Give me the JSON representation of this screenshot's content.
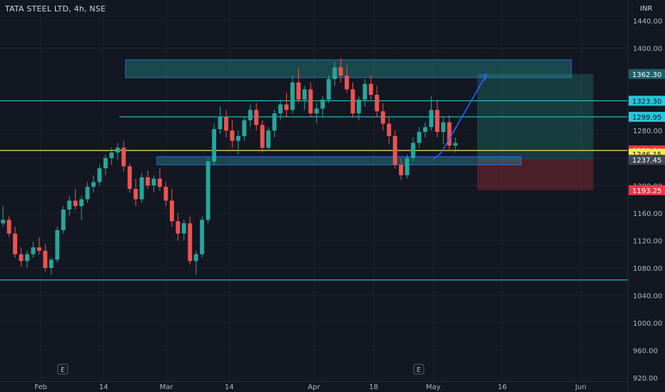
{
  "header": {
    "symbol": "TATA STEEL LTD, 4h, NSE",
    "currency": "INR"
  },
  "chart_data": {
    "type": "candlestick",
    "y_ticks": [
      920,
      960,
      1000,
      1040,
      1080,
      1120,
      1160,
      1200,
      1240,
      1280,
      1400,
      1440
    ],
    "y_tick_labels": [
      "920.00",
      "960.00",
      "1000.00",
      "1040.00",
      "1080.00",
      "1120.00",
      "1160.00",
      "1200.00",
      "1240.00",
      "1280.00",
      "1400.00",
      "1440.00"
    ],
    "x_labels": [
      "Feb",
      "14",
      "Mar",
      "14",
      "Apr",
      "18",
      "May",
      "16",
      "Jun"
    ],
    "horizontal_lines": [
      {
        "value": 1323.3,
        "color": "#26c6da"
      },
      {
        "value": 1299.95,
        "color": "#26c6da"
      },
      {
        "value": 1251.0,
        "color": "#f7ea4b"
      },
      {
        "value": 1062.5,
        "color": "#26c6da"
      }
    ],
    "price_labels": [
      {
        "value": 1362.3,
        "text": "1362.30",
        "bg": "#1e5f6b",
        "fg": "#ffffff"
      },
      {
        "value": 1323.3,
        "text": "1323.30",
        "bg": "#26c6da",
        "fg": "#131722"
      },
      {
        "value": 1299.95,
        "text": "1299.95",
        "bg": "#26c6da",
        "fg": "#131722"
      },
      {
        "value": 1251.0,
        "text": "1251.00",
        "bg": "#f23645",
        "fg": "#ffffff"
      },
      {
        "value": 1246.15,
        "text": "1246.15",
        "bg": "#f7ea4b",
        "fg": "#131722"
      },
      {
        "value": 1237.45,
        "text": "1237.45",
        "bg": "#434651",
        "fg": "#ffffff"
      },
      {
        "value": 1193.25,
        "text": "1193.25",
        "bg": "#f23645",
        "fg": "#ffffff"
      }
    ],
    "zones": [
      {
        "x0": 0.2,
        "x1": 0.91,
        "top": 1383,
        "bottom": 1357,
        "color": "#26a69a",
        "border": "#2962ff"
      },
      {
        "x0": 0.25,
        "x1": 0.83,
        "top": 1242,
        "bottom": 1230,
        "color": "#26a69a",
        "border": "#2962ff"
      }
    ],
    "position": {
      "x0": 0.76,
      "x1": 0.945,
      "target": 1362.3,
      "entry": 1237.45,
      "stop": 1193.25
    },
    "arrow": [
      {
        "t": 0.703,
        "v": 1248
      },
      {
        "t": 0.775,
        "v": 1362
      }
    ],
    "earnings_markers": [
      0.1,
      0.667
    ],
    "candles": [
      [
        1145,
        1170,
        1140,
        1150
      ],
      [
        1150,
        1155,
        1125,
        1130
      ],
      [
        1130,
        1140,
        1095,
        1100
      ],
      [
        1100,
        1110,
        1082,
        1090
      ],
      [
        1090,
        1105,
        1080,
        1100
      ],
      [
        1100,
        1118,
        1095,
        1110
      ],
      [
        1110,
        1125,
        1100,
        1105
      ],
      [
        1105,
        1115,
        1075,
        1080
      ],
      [
        1080,
        1095,
        1070,
        1092
      ],
      [
        1092,
        1140,
        1088,
        1135
      ],
      [
        1135,
        1170,
        1130,
        1165
      ],
      [
        1165,
        1185,
        1155,
        1178
      ],
      [
        1178,
        1195,
        1165,
        1170
      ],
      [
        1170,
        1185,
        1150,
        1180
      ],
      [
        1180,
        1205,
        1175,
        1198
      ],
      [
        1198,
        1215,
        1190,
        1205
      ],
      [
        1205,
        1230,
        1200,
        1225
      ],
      [
        1225,
        1245,
        1215,
        1240
      ],
      [
        1240,
        1255,
        1230,
        1248
      ],
      [
        1248,
        1262,
        1238,
        1255
      ],
      [
        1255,
        1265,
        1220,
        1228
      ],
      [
        1228,
        1232,
        1190,
        1195
      ],
      [
        1195,
        1210,
        1170,
        1180
      ],
      [
        1180,
        1218,
        1175,
        1212
      ],
      [
        1212,
        1222,
        1195,
        1200
      ],
      [
        1200,
        1215,
        1190,
        1210
      ],
      [
        1210,
        1225,
        1192,
        1198
      ],
      [
        1198,
        1205,
        1170,
        1178
      ],
      [
        1178,
        1195,
        1140,
        1148
      ],
      [
        1148,
        1160,
        1120,
        1130
      ],
      [
        1130,
        1150,
        1120,
        1145
      ],
      [
        1145,
        1155,
        1085,
        1090
      ],
      [
        1090,
        1105,
        1070,
        1100
      ],
      [
        1100,
        1155,
        1095,
        1150
      ],
      [
        1150,
        1240,
        1145,
        1235
      ],
      [
        1235,
        1290,
        1230,
        1282
      ],
      [
        1282,
        1315,
        1275,
        1300
      ],
      [
        1300,
        1310,
        1270,
        1280
      ],
      [
        1280,
        1295,
        1255,
        1265
      ],
      [
        1265,
        1280,
        1245,
        1272
      ],
      [
        1272,
        1300,
        1265,
        1295
      ],
      [
        1295,
        1318,
        1285,
        1310
      ],
      [
        1310,
        1320,
        1280,
        1288
      ],
      [
        1288,
        1295,
        1248,
        1255
      ],
      [
        1255,
        1285,
        1250,
        1280
      ],
      [
        1280,
        1310,
        1270,
        1305
      ],
      [
        1305,
        1325,
        1295,
        1318
      ],
      [
        1318,
        1335,
        1300,
        1310
      ],
      [
        1310,
        1360,
        1305,
        1350
      ],
      [
        1350,
        1370,
        1320,
        1325
      ],
      [
        1325,
        1345,
        1310,
        1340
      ],
      [
        1340,
        1350,
        1300,
        1305
      ],
      [
        1305,
        1320,
        1290,
        1312
      ],
      [
        1312,
        1330,
        1300,
        1325
      ],
      [
        1325,
        1360,
        1320,
        1355
      ],
      [
        1355,
        1380,
        1345,
        1372
      ],
      [
        1372,
        1385,
        1350,
        1360
      ],
      [
        1360,
        1375,
        1335,
        1340
      ],
      [
        1340,
        1350,
        1300,
        1305
      ],
      [
        1305,
        1330,
        1295,
        1325
      ],
      [
        1325,
        1355,
        1315,
        1348
      ],
      [
        1348,
        1360,
        1325,
        1332
      ],
      [
        1332,
        1345,
        1300,
        1308
      ],
      [
        1308,
        1320,
        1280,
        1290
      ],
      [
        1290,
        1300,
        1260,
        1272
      ],
      [
        1272,
        1280,
        1225,
        1230
      ],
      [
        1230,
        1240,
        1208,
        1215
      ],
      [
        1215,
        1245,
        1210,
        1240
      ],
      [
        1240,
        1270,
        1235,
        1262
      ],
      [
        1262,
        1285,
        1255,
        1278
      ],
      [
        1278,
        1292,
        1270,
        1285
      ],
      [
        1285,
        1330,
        1280,
        1310
      ],
      [
        1310,
        1325,
        1270,
        1278
      ],
      [
        1278,
        1300,
        1260,
        1292
      ],
      [
        1292,
        1302,
        1250,
        1258
      ],
      [
        1258,
        1270,
        1248,
        1262
      ]
    ]
  }
}
